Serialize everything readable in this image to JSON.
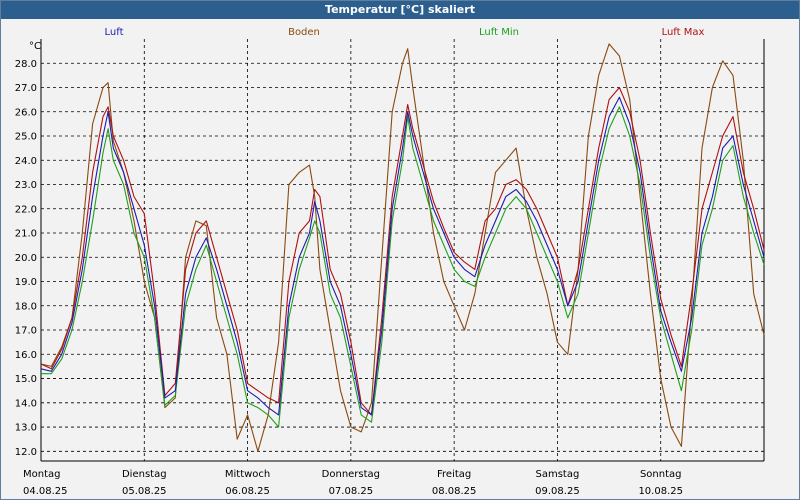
{
  "window": {
    "title": "Temperatur [°C] skaliert"
  },
  "colors": {
    "Luft": "#1c1cb4",
    "Boden": "#8a4a10",
    "Luft Min": "#1ea01e",
    "Luft Max": "#b01010",
    "grid": "#000000",
    "titlebar": "#2d5f8e"
  },
  "chart_data": {
    "type": "line",
    "y_unit": "°C",
    "ylim": [
      11.6,
      29.0
    ],
    "y_ticks": [
      12.0,
      13.0,
      14.0,
      15.0,
      16.0,
      17.0,
      18.0,
      19.0,
      20.0,
      21.0,
      22.0,
      23.0,
      24.0,
      25.0,
      26.0,
      27.0,
      28.0
    ],
    "x_range_days": [
      0,
      7
    ],
    "grid": true,
    "legend_position": "top",
    "day_labels": [
      {
        "day": "Montag",
        "date": "04.08.25"
      },
      {
        "day": "Dienstag",
        "date": "05.08.25"
      },
      {
        "day": "Mittwoch",
        "date": "06.08.25"
      },
      {
        "day": "Donnerstag",
        "date": "07.08.25"
      },
      {
        "day": "Freitag",
        "date": "08.08.25"
      },
      {
        "day": "Samstag",
        "date": "09.08.25"
      },
      {
        "day": "Sonntag",
        "date": "10.08.25"
      }
    ],
    "series": [
      {
        "name": "Luft",
        "points": [
          [
            0.0,
            15.4
          ],
          [
            0.1,
            15.3
          ],
          [
            0.2,
            16.0
          ],
          [
            0.3,
            17.3
          ],
          [
            0.4,
            19.5
          ],
          [
            0.5,
            22.5
          ],
          [
            0.6,
            25.0
          ],
          [
            0.65,
            26.0
          ],
          [
            0.7,
            24.5
          ],
          [
            0.8,
            23.5
          ],
          [
            0.9,
            22.0
          ],
          [
            1.0,
            20.5
          ],
          [
            1.1,
            18.0
          ],
          [
            1.2,
            14.2
          ],
          [
            1.3,
            14.5
          ],
          [
            1.4,
            18.5
          ],
          [
            1.5,
            20.0
          ],
          [
            1.6,
            20.8
          ],
          [
            1.7,
            19.5
          ],
          [
            1.8,
            18.0
          ],
          [
            1.9,
            16.5
          ],
          [
            2.0,
            14.5
          ],
          [
            2.1,
            14.2
          ],
          [
            2.2,
            13.8
          ],
          [
            2.3,
            13.5
          ],
          [
            2.4,
            18.0
          ],
          [
            2.5,
            20.0
          ],
          [
            2.6,
            21.0
          ],
          [
            2.65,
            22.3
          ],
          [
            2.7,
            21.5
          ],
          [
            2.8,
            19.0
          ],
          [
            2.9,
            18.0
          ],
          [
            3.0,
            16.0
          ],
          [
            3.1,
            13.8
          ],
          [
            3.2,
            13.5
          ],
          [
            3.3,
            17.0
          ],
          [
            3.4,
            22.0
          ],
          [
            3.5,
            24.5
          ],
          [
            3.55,
            26.0
          ],
          [
            3.6,
            25.0
          ],
          [
            3.7,
            23.5
          ],
          [
            3.8,
            22.0
          ],
          [
            3.9,
            21.0
          ],
          [
            4.0,
            20.0
          ],
          [
            4.1,
            19.5
          ],
          [
            4.2,
            19.2
          ],
          [
            4.3,
            20.5
          ],
          [
            4.4,
            21.5
          ],
          [
            4.5,
            22.5
          ],
          [
            4.6,
            22.8
          ],
          [
            4.7,
            22.3
          ],
          [
            4.8,
            21.5
          ],
          [
            4.9,
            20.5
          ],
          [
            5.0,
            19.5
          ],
          [
            5.1,
            18.0
          ],
          [
            5.2,
            19.0
          ],
          [
            5.3,
            21.5
          ],
          [
            5.4,
            24.0
          ],
          [
            5.5,
            25.8
          ],
          [
            5.6,
            26.6
          ],
          [
            5.7,
            25.5
          ],
          [
            5.8,
            23.5
          ],
          [
            5.9,
            20.5
          ],
          [
            6.0,
            17.8
          ],
          [
            6.1,
            16.5
          ],
          [
            6.2,
            15.3
          ],
          [
            6.3,
            17.5
          ],
          [
            6.4,
            21.0
          ],
          [
            6.5,
            22.5
          ],
          [
            6.6,
            24.5
          ],
          [
            6.7,
            25.0
          ],
          [
            6.8,
            23.0
          ],
          [
            6.9,
            21.5
          ],
          [
            7.0,
            20.0
          ]
        ]
      },
      {
        "name": "Boden",
        "points": [
          [
            0.0,
            15.6
          ],
          [
            0.1,
            15.5
          ],
          [
            0.2,
            16.3
          ],
          [
            0.3,
            17.5
          ],
          [
            0.4,
            21.0
          ],
          [
            0.5,
            25.5
          ],
          [
            0.6,
            27.0
          ],
          [
            0.65,
            27.2
          ],
          [
            0.7,
            24.8
          ],
          [
            0.8,
            23.5
          ],
          [
            0.9,
            21.5
          ],
          [
            1.0,
            19.0
          ],
          [
            1.1,
            17.5
          ],
          [
            1.2,
            13.8
          ],
          [
            1.3,
            14.2
          ],
          [
            1.4,
            20.0
          ],
          [
            1.5,
            21.5
          ],
          [
            1.6,
            21.3
          ],
          [
            1.7,
            17.5
          ],
          [
            1.8,
            16.0
          ],
          [
            1.9,
            12.5
          ],
          [
            2.0,
            13.5
          ],
          [
            2.1,
            12.0
          ],
          [
            2.2,
            13.5
          ],
          [
            2.3,
            16.5
          ],
          [
            2.4,
            23.0
          ],
          [
            2.5,
            23.5
          ],
          [
            2.6,
            23.8
          ],
          [
            2.65,
            22.5
          ],
          [
            2.7,
            19.5
          ],
          [
            2.8,
            17.0
          ],
          [
            2.9,
            14.5
          ],
          [
            3.0,
            13.0
          ],
          [
            3.1,
            12.8
          ],
          [
            3.2,
            14.0
          ],
          [
            3.3,
            20.0
          ],
          [
            3.4,
            26.0
          ],
          [
            3.5,
            28.0
          ],
          [
            3.55,
            28.6
          ],
          [
            3.6,
            27.0
          ],
          [
            3.7,
            24.0
          ],
          [
            3.8,
            21.0
          ],
          [
            3.9,
            19.0
          ],
          [
            4.0,
            18.0
          ],
          [
            4.1,
            17.0
          ],
          [
            4.2,
            18.5
          ],
          [
            4.3,
            21.0
          ],
          [
            4.4,
            23.5
          ],
          [
            4.5,
            24.0
          ],
          [
            4.6,
            24.5
          ],
          [
            4.7,
            22.0
          ],
          [
            4.8,
            20.0
          ],
          [
            4.9,
            18.5
          ],
          [
            5.0,
            16.5
          ],
          [
            5.1,
            16.0
          ],
          [
            5.2,
            19.5
          ],
          [
            5.3,
            25.0
          ],
          [
            5.4,
            27.5
          ],
          [
            5.5,
            28.8
          ],
          [
            5.6,
            28.3
          ],
          [
            5.7,
            26.5
          ],
          [
            5.8,
            22.5
          ],
          [
            5.9,
            18.5
          ],
          [
            6.0,
            15.0
          ],
          [
            6.1,
            13.0
          ],
          [
            6.2,
            12.2
          ],
          [
            6.3,
            18.0
          ],
          [
            6.4,
            24.5
          ],
          [
            6.5,
            27.0
          ],
          [
            6.6,
            28.1
          ],
          [
            6.7,
            27.5
          ],
          [
            6.8,
            24.0
          ],
          [
            6.9,
            18.5
          ],
          [
            7.0,
            16.8
          ]
        ]
      },
      {
        "name": "Luft Min",
        "points": [
          [
            0.0,
            15.2
          ],
          [
            0.1,
            15.2
          ],
          [
            0.2,
            15.8
          ],
          [
            0.3,
            17.0
          ],
          [
            0.4,
            19.0
          ],
          [
            0.5,
            21.5
          ],
          [
            0.6,
            24.3
          ],
          [
            0.65,
            25.3
          ],
          [
            0.7,
            24.0
          ],
          [
            0.8,
            23.0
          ],
          [
            0.9,
            21.0
          ],
          [
            1.0,
            20.0
          ],
          [
            1.1,
            17.5
          ],
          [
            1.2,
            13.9
          ],
          [
            1.3,
            14.3
          ],
          [
            1.4,
            18.0
          ],
          [
            1.5,
            19.5
          ],
          [
            1.6,
            20.5
          ],
          [
            1.7,
            19.0
          ],
          [
            1.8,
            17.5
          ],
          [
            1.9,
            16.0
          ],
          [
            2.0,
            14.0
          ],
          [
            2.1,
            13.8
          ],
          [
            2.2,
            13.5
          ],
          [
            2.3,
            13.0
          ],
          [
            2.4,
            17.5
          ],
          [
            2.5,
            19.5
          ],
          [
            2.6,
            20.8
          ],
          [
            2.65,
            21.5
          ],
          [
            2.7,
            21.0
          ],
          [
            2.8,
            18.5
          ],
          [
            2.9,
            17.5
          ],
          [
            3.0,
            15.5
          ],
          [
            3.1,
            13.5
          ],
          [
            3.2,
            13.2
          ],
          [
            3.3,
            16.5
          ],
          [
            3.4,
            21.5
          ],
          [
            3.5,
            24.0
          ],
          [
            3.55,
            25.8
          ],
          [
            3.6,
            24.5
          ],
          [
            3.7,
            23.0
          ],
          [
            3.8,
            21.5
          ],
          [
            3.9,
            20.5
          ],
          [
            4.0,
            19.5
          ],
          [
            4.1,
            19.0
          ],
          [
            4.2,
            18.8
          ],
          [
            4.3,
            20.0
          ],
          [
            4.4,
            21.0
          ],
          [
            4.5,
            22.0
          ],
          [
            4.6,
            22.5
          ],
          [
            4.7,
            22.0
          ],
          [
            4.8,
            21.0
          ],
          [
            4.9,
            20.0
          ],
          [
            5.0,
            19.0
          ],
          [
            5.1,
            17.5
          ],
          [
            5.2,
            18.5
          ],
          [
            5.3,
            21.0
          ],
          [
            5.4,
            23.5
          ],
          [
            5.5,
            25.3
          ],
          [
            5.6,
            26.2
          ],
          [
            5.7,
            25.0
          ],
          [
            5.8,
            23.0
          ],
          [
            5.9,
            20.0
          ],
          [
            6.0,
            17.5
          ],
          [
            6.1,
            16.0
          ],
          [
            6.2,
            14.5
          ],
          [
            6.3,
            17.0
          ],
          [
            6.4,
            20.5
          ],
          [
            6.5,
            22.0
          ],
          [
            6.6,
            24.0
          ],
          [
            6.7,
            24.6
          ],
          [
            6.8,
            22.5
          ],
          [
            6.9,
            21.0
          ],
          [
            7.0,
            19.7
          ]
        ]
      },
      {
        "name": "Luft Max",
        "points": [
          [
            0.0,
            15.6
          ],
          [
            0.1,
            15.4
          ],
          [
            0.2,
            16.2
          ],
          [
            0.3,
            17.5
          ],
          [
            0.4,
            20.0
          ],
          [
            0.5,
            23.5
          ],
          [
            0.6,
            25.8
          ],
          [
            0.65,
            26.2
          ],
          [
            0.7,
            25.0
          ],
          [
            0.8,
            24.0
          ],
          [
            0.9,
            22.5
          ],
          [
            1.0,
            21.8
          ],
          [
            1.1,
            18.5
          ],
          [
            1.2,
            14.3
          ],
          [
            1.3,
            14.8
          ],
          [
            1.4,
            19.5
          ],
          [
            1.5,
            21.0
          ],
          [
            1.6,
            21.5
          ],
          [
            1.7,
            20.0
          ],
          [
            1.8,
            18.5
          ],
          [
            1.9,
            17.0
          ],
          [
            2.0,
            14.8
          ],
          [
            2.1,
            14.5
          ],
          [
            2.2,
            14.2
          ],
          [
            2.3,
            14.0
          ],
          [
            2.4,
            19.0
          ],
          [
            2.5,
            21.0
          ],
          [
            2.6,
            21.5
          ],
          [
            2.65,
            22.8
          ],
          [
            2.7,
            22.5
          ],
          [
            2.8,
            19.5
          ],
          [
            2.9,
            18.5
          ],
          [
            3.0,
            16.5
          ],
          [
            3.1,
            14.0
          ],
          [
            3.2,
            13.5
          ],
          [
            3.3,
            17.5
          ],
          [
            3.4,
            22.5
          ],
          [
            3.5,
            25.0
          ],
          [
            3.55,
            26.3
          ],
          [
            3.6,
            25.3
          ],
          [
            3.7,
            23.8
          ],
          [
            3.8,
            22.3
          ],
          [
            3.9,
            21.2
          ],
          [
            4.0,
            20.2
          ],
          [
            4.1,
            19.8
          ],
          [
            4.2,
            19.5
          ],
          [
            4.3,
            21.5
          ],
          [
            4.4,
            22.0
          ],
          [
            4.5,
            23.0
          ],
          [
            4.6,
            23.2
          ],
          [
            4.7,
            22.8
          ],
          [
            4.8,
            22.0
          ],
          [
            4.9,
            21.0
          ],
          [
            5.0,
            20.0
          ],
          [
            5.1,
            18.0
          ],
          [
            5.2,
            19.5
          ],
          [
            5.3,
            22.0
          ],
          [
            5.4,
            24.5
          ],
          [
            5.5,
            26.5
          ],
          [
            5.6,
            27.0
          ],
          [
            5.7,
            26.0
          ],
          [
            5.8,
            24.0
          ],
          [
            5.9,
            21.0
          ],
          [
            6.0,
            18.3
          ],
          [
            6.1,
            16.8
          ],
          [
            6.2,
            15.5
          ],
          [
            6.3,
            18.5
          ],
          [
            6.4,
            22.0
          ],
          [
            6.5,
            23.5
          ],
          [
            6.6,
            25.0
          ],
          [
            6.7,
            25.8
          ],
          [
            6.8,
            23.5
          ],
          [
            6.9,
            22.0
          ],
          [
            7.0,
            20.3
          ]
        ]
      }
    ]
  }
}
